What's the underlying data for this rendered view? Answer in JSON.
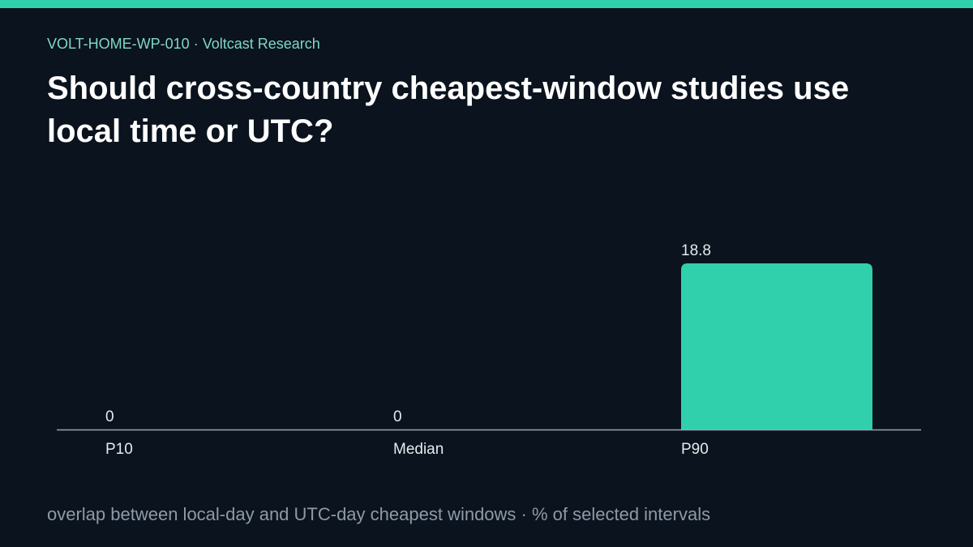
{
  "header": {
    "eyebrow": "VOLT-HOME-WP-010 · Voltcast Research",
    "title": "Should cross-country cheapest-window studies use local time or UTC?"
  },
  "footer": {
    "caption": "overlap between local-day and UTC-day cheapest windows · % of selected intervals"
  },
  "colors": {
    "background": "#0a131e",
    "accent": "#31d0ac",
    "eyebrow": "#7fd8c4",
    "axis": "#9aa5b2",
    "label": "#e6eaee",
    "caption": "#8e9aa8"
  },
  "chart_data": {
    "type": "bar",
    "categories": [
      "P10",
      "Median",
      "P90"
    ],
    "values": [
      0,
      0,
      18.8
    ],
    "data_labels": [
      "0",
      "0",
      "18.8"
    ],
    "title": "",
    "xlabel": "",
    "ylabel": "",
    "ylim": [
      0,
      18.8
    ],
    "grid": false,
    "legend": "none"
  }
}
